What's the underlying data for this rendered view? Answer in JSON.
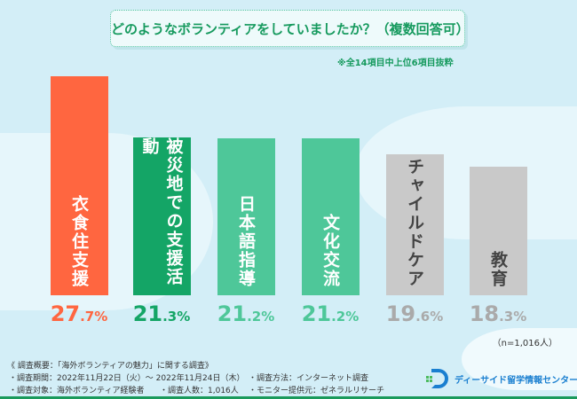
{
  "title": "どのようなボランティアをしていましたか？（複数回答可）",
  "note": "※全14項目中上位6項目抜粋",
  "chart_data": {
    "type": "bar",
    "title": "どのようなボランティアをしていましたか？（複数回答可）",
    "categories": [
      "衣食住支援",
      "被災地での支援活動",
      "日本語指導",
      "文化交流",
      "チャイルドケア",
      "教育"
    ],
    "values": [
      27.7,
      21.3,
      21.2,
      21.2,
      19.6,
      18.3
    ],
    "labels": [
      "27.7%",
      "21.3%",
      "21.2%",
      "21.2%",
      "19.6%",
      "18.3%"
    ],
    "colors": [
      "#ff6640",
      "#14a566",
      "#4ec799",
      "#4ec799",
      "#c9c9c9",
      "#c9c9c9"
    ],
    "text_colors": [
      "#fff",
      "#fff",
      "#fff",
      "#fff",
      "#444",
      "#444"
    ],
    "pct_colors": [
      "#ff6640",
      "#14a566",
      "#4ec799",
      "#4ec799",
      "#aaaaaa",
      "#aaaaaa"
    ],
    "unit": "%",
    "xlabel": "",
    "ylabel": ""
  },
  "n": "（n=1,016人）",
  "footer": {
    "heading": "《 調査概要：「海外ボランティアの魅力」に関する調査》",
    "period": "・調査期間：2022年11月22日（火）～ 2022年11月24日（木）",
    "target": "・調査対象：海外ボランティア経験者",
    "count": "・調査人数：1,016人",
    "method": "・調査方法：インターネット調査",
    "provider": "・モニター提供元：ゼネラルリサーチ"
  },
  "logo": "ディーサイド留学情報センター"
}
